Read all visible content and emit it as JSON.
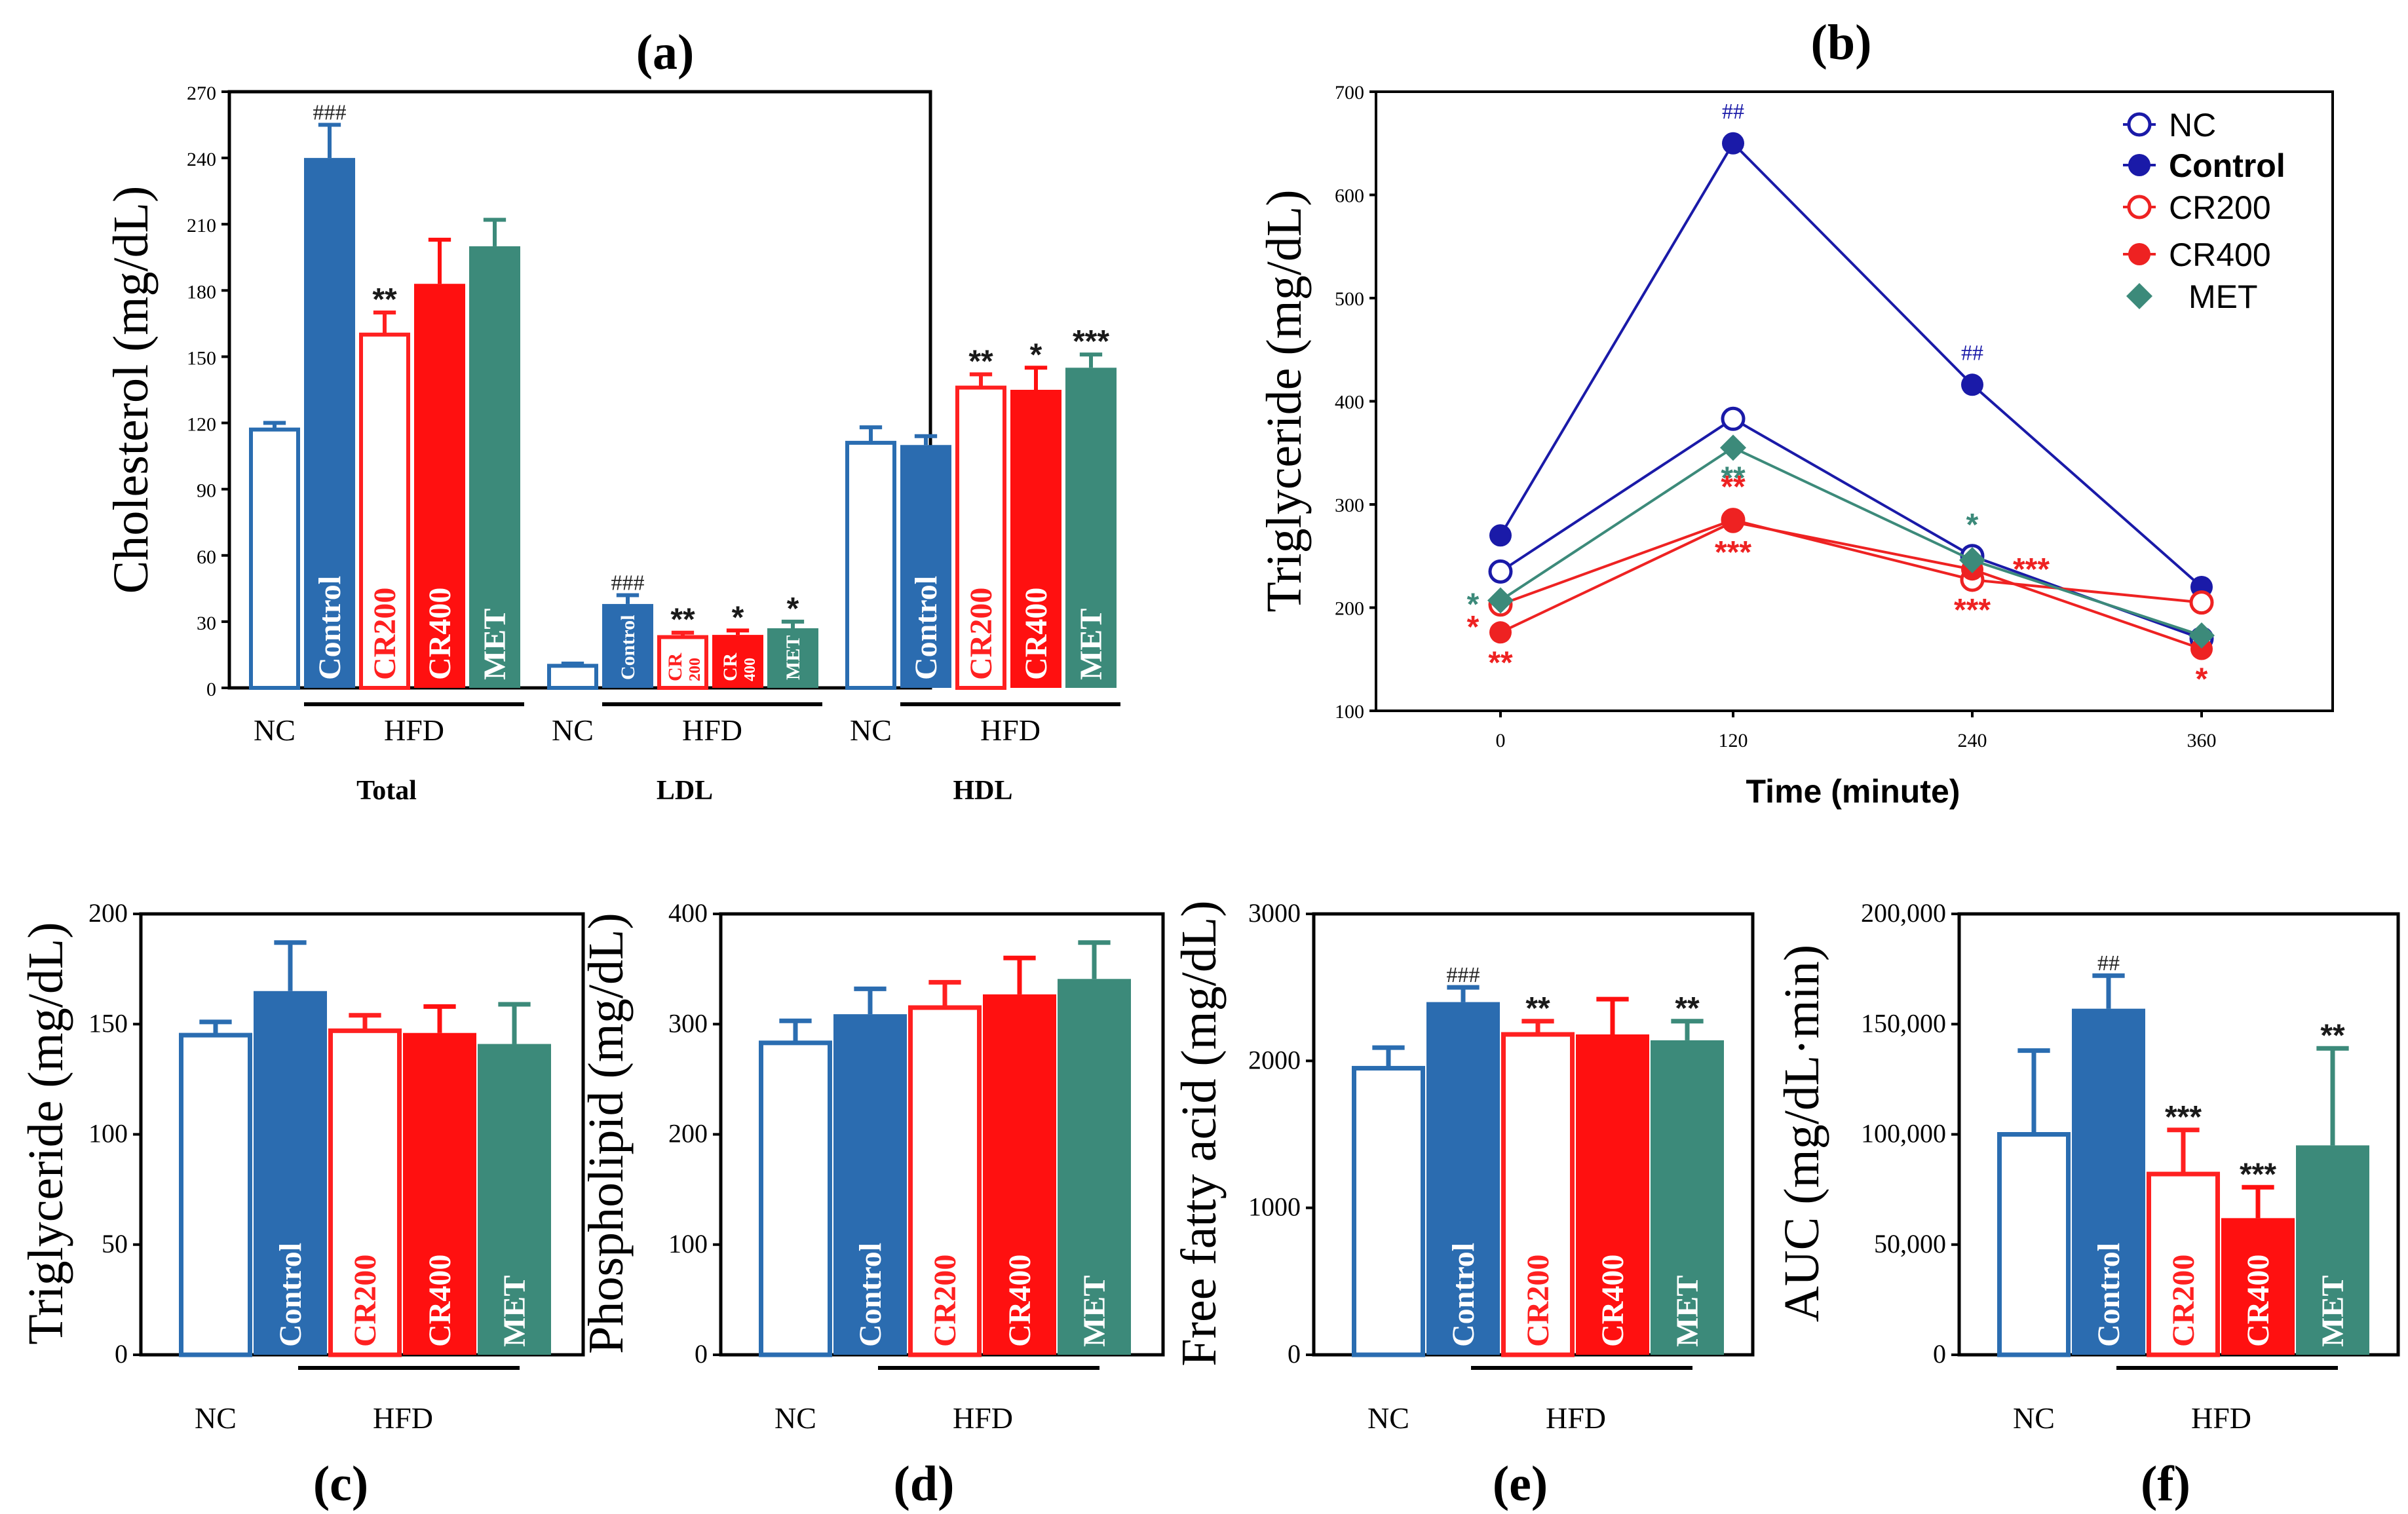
{
  "colors": {
    "nc": "#2a6db1",
    "control": "#2b6cb0",
    "cr200": "#ff2020",
    "cr400": "#ff1010",
    "met": "#3c8a7a",
    "line_nc": "#1a1aa8",
    "line_control": "#1a1aa8",
    "line_cr": "#ee2222",
    "line_met": "#3c8a7a"
  },
  "chart_data": [
    {
      "id": "a",
      "panel_label": "(a)",
      "type": "bar",
      "ylabel": "Cholesterol (mg/dL)",
      "ylim": [
        0,
        270
      ],
      "yticks": [
        "0",
        "30",
        "60",
        "90",
        "120",
        "150",
        "180",
        "210",
        "240",
        "270"
      ],
      "groups": [
        {
          "name": "Total",
          "nc_label": "NC",
          "hfd_label": "HFD",
          "bars": [
            {
              "series": "NC",
              "value": 117,
              "error": 3,
              "label": "",
              "annotation": ""
            },
            {
              "series": "Control",
              "value": 240,
              "error": 15,
              "label": "Control",
              "annotation": "###"
            },
            {
              "series": "CR200",
              "value": 160,
              "error": 10,
              "label": "CR200",
              "annotation": "**"
            },
            {
              "series": "CR400",
              "value": 183,
              "error": 20,
              "label": "CR400",
              "annotation": ""
            },
            {
              "series": "MET",
              "value": 200,
              "error": 12,
              "label": "MET",
              "annotation": ""
            }
          ]
        },
        {
          "name": "LDL",
          "nc_label": "NC",
          "hfd_label": "HFD",
          "bars": [
            {
              "series": "NC",
              "value": 10,
              "error": 1,
              "label": "",
              "annotation": ""
            },
            {
              "series": "Control",
              "value": 38,
              "error": 4,
              "label": "Control",
              "annotation": "###"
            },
            {
              "series": "CR200",
              "value": 23,
              "error": 2,
              "label": "CR 200",
              "annotation": "**"
            },
            {
              "series": "CR400",
              "value": 24,
              "error": 2,
              "label": "CR 400",
              "annotation": "*"
            },
            {
              "series": "MET",
              "value": 27,
              "error": 3,
              "label": "MET",
              "annotation": "*"
            }
          ]
        },
        {
          "name": "HDL",
          "nc_label": "NC",
          "hfd_label": "HFD",
          "bars": [
            {
              "series": "NC",
              "value": 111,
              "error": 7,
              "label": "",
              "annotation": ""
            },
            {
              "series": "Control",
              "value": 110,
              "error": 4,
              "label": "Control",
              "annotation": ""
            },
            {
              "series": "CR200",
              "value": 136,
              "error": 6,
              "label": "CR200",
              "annotation": "**"
            },
            {
              "series": "CR400",
              "value": 135,
              "error": 10,
              "label": "CR400",
              "annotation": "*"
            },
            {
              "series": "MET",
              "value": 145,
              "error": 6,
              "label": "MET",
              "annotation": "***"
            }
          ]
        }
      ]
    },
    {
      "id": "b",
      "panel_label": "(b)",
      "type": "line",
      "ylabel": "Triglyceride (mg/dL)",
      "xlabel": "Time (minute)",
      "x": [
        0,
        120,
        240,
        360
      ],
      "xticks": [
        "0",
        "120",
        "240",
        "360"
      ],
      "ylim": [
        100,
        700
      ],
      "yticks": [
        "100",
        "200",
        "300",
        "400",
        "500",
        "600",
        "700"
      ],
      "legend_position": "top-right",
      "series": [
        {
          "name": "NC",
          "values": [
            235,
            383,
            250,
            170
          ],
          "marker": "open-circle",
          "color_key": "line_nc"
        },
        {
          "name": "Control",
          "values": [
            270,
            650,
            416,
            220
          ],
          "marker": "filled-circle",
          "color_key": "line_control"
        },
        {
          "name": "CR200",
          "values": [
            203,
            285,
            227,
            205
          ],
          "marker": "open-circle",
          "color_key": "line_cr"
        },
        {
          "name": "CR400",
          "values": [
            176,
            283,
            237,
            160
          ],
          "marker": "filled-circle",
          "color_key": "line_cr"
        },
        {
          "name": "MET",
          "values": [
            207,
            355,
            246,
            173
          ],
          "marker": "diamond",
          "color_key": "line_met"
        }
      ],
      "annotations": [
        {
          "text": "##",
          "x": 120,
          "y": 650,
          "offset": "above",
          "color_key": "line_nc"
        },
        {
          "text": "##",
          "x": 240,
          "y": 416,
          "offset": "above",
          "color_key": "line_nc"
        },
        {
          "text": "*",
          "x": 0,
          "y": 207,
          "offset": "left",
          "color_key": "line_met"
        },
        {
          "text": "*",
          "x": 0,
          "y": 203,
          "offset": "below-left",
          "color_key": "line_cr"
        },
        {
          "text": "**",
          "x": 0,
          "y": 176,
          "offset": "below",
          "color_key": "line_cr"
        },
        {
          "text": "**",
          "x": 120,
          "y": 355,
          "offset": "below",
          "color_key": "line_met"
        },
        {
          "text": "**",
          "x": 120,
          "y": 283,
          "offset": "above",
          "color_key": "line_cr"
        },
        {
          "text": "***",
          "x": 120,
          "y": 283,
          "offset": "below",
          "color_key": "line_cr"
        },
        {
          "text": "*",
          "x": 240,
          "y": 246,
          "offset": "above",
          "color_key": "line_met"
        },
        {
          "text": "***",
          "x": 240,
          "y": 250,
          "offset": "right",
          "color_key": "line_cr"
        },
        {
          "text": "***",
          "x": 240,
          "y": 227,
          "offset": "below",
          "color_key": "line_cr"
        },
        {
          "text": "*",
          "x": 360,
          "y": 160,
          "offset": "below",
          "color_key": "line_cr"
        }
      ]
    },
    {
      "id": "c",
      "panel_label": "(c)",
      "type": "bar",
      "ylabel": "Triglyceride (mg/dL)",
      "ylim": [
        0,
        200
      ],
      "yticks": [
        "0",
        "50",
        "100",
        "150",
        "200"
      ],
      "nc_label": "NC",
      "hfd_label": "HFD",
      "bars": [
        {
          "series": "NC",
          "value": 145,
          "error": 6,
          "label": "",
          "annotation": ""
        },
        {
          "series": "Control",
          "value": 165,
          "error": 22,
          "label": "Control",
          "annotation": ""
        },
        {
          "series": "CR200",
          "value": 147,
          "error": 7,
          "label": "CR200",
          "annotation": ""
        },
        {
          "series": "CR400",
          "value": 146,
          "error": 12,
          "label": "CR400",
          "annotation": ""
        },
        {
          "series": "MET",
          "value": 141,
          "error": 18,
          "label": "MET",
          "annotation": ""
        }
      ]
    },
    {
      "id": "d",
      "panel_label": "(d)",
      "type": "bar",
      "ylabel": "Phospholipid (mg/dL)",
      "ylim": [
        0,
        400
      ],
      "yticks": [
        "0",
        "100",
        "200",
        "300",
        "400"
      ],
      "nc_label": "NC",
      "hfd_label": "HFD",
      "bars": [
        {
          "series": "NC",
          "value": 283,
          "error": 20,
          "label": "",
          "annotation": ""
        },
        {
          "series": "Control",
          "value": 309,
          "error": 23,
          "label": "Control",
          "annotation": ""
        },
        {
          "series": "CR200",
          "value": 315,
          "error": 23,
          "label": "CR200",
          "annotation": ""
        },
        {
          "series": "CR400",
          "value": 327,
          "error": 33,
          "label": "CR400",
          "annotation": ""
        },
        {
          "series": "MET",
          "value": 341,
          "error": 33,
          "label": "MET",
          "annotation": ""
        }
      ]
    },
    {
      "id": "e",
      "panel_label": "(e)",
      "type": "bar",
      "ylabel": "Free fatty acid (mg/dL)",
      "ylim": [
        0,
        3000
      ],
      "yticks": [
        "0",
        "1000",
        "2000",
        "3000"
      ],
      "nc_label": "NC",
      "hfd_label": "HFD",
      "bars": [
        {
          "series": "NC",
          "value": 1950,
          "error": 140,
          "label": "",
          "annotation": ""
        },
        {
          "series": "Control",
          "value": 2400,
          "error": 100,
          "label": "Control",
          "annotation": "###"
        },
        {
          "series": "CR200",
          "value": 2180,
          "error": 90,
          "label": "CR200",
          "annotation": "**"
        },
        {
          "series": "CR400",
          "value": 2180,
          "error": 240,
          "label": "CR400",
          "annotation": ""
        },
        {
          "series": "MET",
          "value": 2140,
          "error": 130,
          "label": "MET",
          "annotation": "**"
        }
      ]
    },
    {
      "id": "f",
      "panel_label": "(f)",
      "type": "bar",
      "ylabel": "AUC (mg/dL·min)",
      "ylim": [
        0,
        200000
      ],
      "yticks": [
        "0",
        "50,000",
        "100,000",
        "150,000",
        "200,000"
      ],
      "nc_label": "NC",
      "hfd_label": "HFD",
      "bars": [
        {
          "series": "NC",
          "value": 100000,
          "error": 38000,
          "label": "",
          "annotation": ""
        },
        {
          "series": "Control",
          "value": 157000,
          "error": 15000,
          "label": "Control",
          "annotation": "##"
        },
        {
          "series": "CR200",
          "value": 82000,
          "error": 20000,
          "label": "CR200",
          "annotation": "***"
        },
        {
          "series": "CR400",
          "value": 62000,
          "error": 14000,
          "label": "CR400",
          "annotation": "***"
        },
        {
          "series": "MET",
          "value": 95000,
          "error": 44000,
          "label": "MET",
          "annotation": "**"
        }
      ]
    }
  ]
}
